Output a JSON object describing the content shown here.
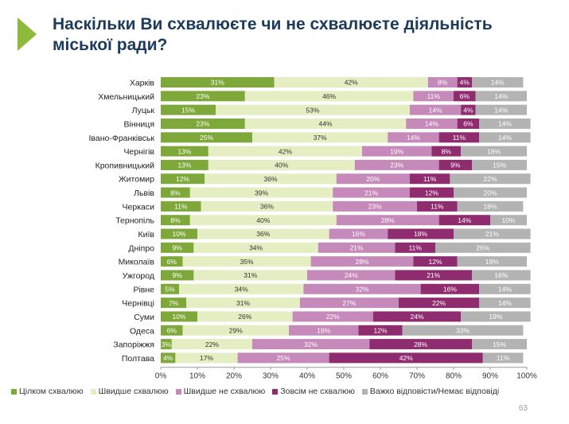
{
  "header": {
    "title": "Наскільки Ви схвалюєте чи не схвалюєте діяльність міської ради?"
  },
  "page_number": "63",
  "chart_data": {
    "type": "bar",
    "orientation": "horizontal",
    "stacked": true,
    "categories": [
      "Харків",
      "Хмельницький",
      "Луцьк",
      "Вінниця",
      "Івано-Франківськ",
      "Чернігів",
      "Кропивницький",
      "Житомир",
      "Львів",
      "Черкаси",
      "Тернопіль",
      "Київ",
      "Дніпро",
      "Миколаїв",
      "Ужгород",
      "Рівне",
      "Чернівці",
      "Суми",
      "Одеса",
      "Запоріжжя",
      "Полтава"
    ],
    "series": [
      {
        "name": "Цілком схвалюю",
        "color": "#7fa83a",
        "values": [
          31,
          23,
          15,
          23,
          25,
          13,
          13,
          12,
          8,
          11,
          8,
          10,
          9,
          6,
          9,
          5,
          7,
          10,
          6,
          3,
          4
        ]
      },
      {
        "name": "Швидше схвалюю",
        "color": "#e4eec2",
        "values": [
          42,
          46,
          53,
          44,
          37,
          42,
          40,
          36,
          39,
          36,
          40,
          36,
          34,
          35,
          31,
          34,
          31,
          26,
          29,
          22,
          17
        ]
      },
      {
        "name": "Швидше не схвалюю",
        "color": "#c58ab9",
        "values": [
          8,
          11,
          14,
          14,
          14,
          19,
          23,
          20,
          21,
          23,
          28,
          16,
          21,
          28,
          24,
          32,
          27,
          22,
          19,
          32,
          25
        ]
      },
      {
        "name": "Зовсім не схвалюю",
        "color": "#8f2c6f",
        "values": [
          4,
          6,
          4,
          6,
          11,
          8,
          9,
          11,
          12,
          11,
          14,
          18,
          11,
          12,
          21,
          16,
          22,
          24,
          12,
          28,
          42
        ]
      },
      {
        "name": "Важко відповісти/Немає відповіді",
        "color": "#b3b3b3",
        "values": [
          14,
          14,
          14,
          14,
          14,
          18,
          15,
          22,
          20,
          18,
          10,
          21,
          26,
          19,
          16,
          14,
          14,
          19,
          33,
          15,
          11
        ]
      }
    ],
    "xlim": [
      0,
      100
    ],
    "x_ticks": [
      "0%",
      "10%",
      "20%",
      "30%",
      "40%",
      "50%",
      "60%",
      "70%",
      "80%",
      "90%",
      "100%"
    ],
    "grid": false,
    "legend_position": "bottom",
    "value_suffix": "%"
  }
}
